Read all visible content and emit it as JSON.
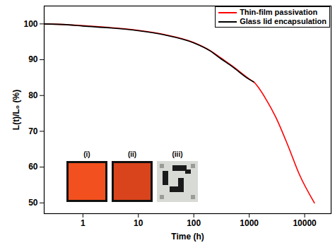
{
  "chart_data": {
    "type": "line",
    "x_label": "Time (h)",
    "y_label": "L(t)/L₀ (%)",
    "log": "x",
    "xlim": [
      0.2,
      30000
    ],
    "ylim": [
      47,
      105
    ],
    "xticks": [
      1,
      10,
      100,
      1000,
      10000
    ],
    "yticks": [
      50,
      60,
      70,
      80,
      90,
      100
    ],
    "legend": "upper right",
    "series": [
      {
        "name": "Thin-film passivation",
        "color": "#ff0000",
        "x": [
          0.2,
          0.5,
          1,
          3,
          10,
          30,
          100,
          200,
          300,
          500,
          1000,
          1200,
          2000,
          3000,
          5000,
          8000,
          15000
        ],
        "values": [
          100,
          99.8,
          99.5,
          99,
          98.2,
          97,
          94.8,
          92.5,
          90.6,
          88.2,
          84.6,
          83.8,
          79,
          74,
          66,
          58,
          50
        ]
      },
      {
        "name": "Glass lid encapsulation",
        "color": "#000000",
        "x": [
          0.2,
          0.5,
          1,
          3,
          10,
          30,
          100,
          200,
          300,
          500,
          1000,
          1200
        ],
        "values": [
          100,
          99.8,
          99.4,
          98.9,
          98.1,
          96.9,
          94.7,
          92.4,
          90.4,
          88,
          84.5,
          83.8
        ]
      }
    ],
    "annotations": [
      "(i)",
      "(ii)",
      "(iii)"
    ]
  }
}
